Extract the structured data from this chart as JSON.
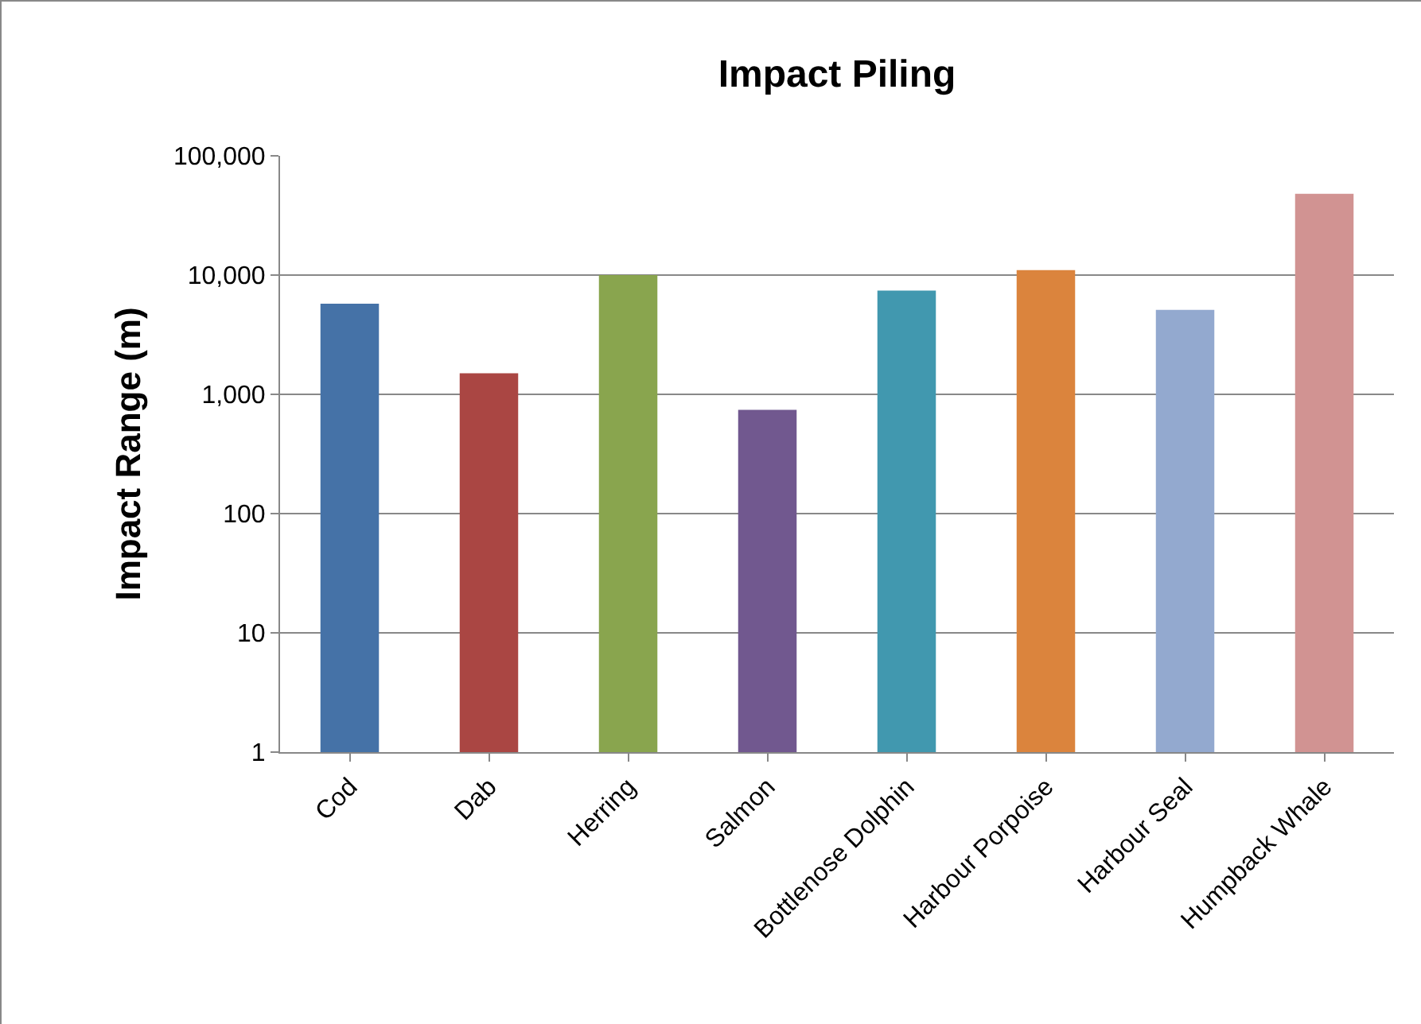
{
  "chart_data": {
    "type": "bar",
    "title": "Impact Piling",
    "ylabel": "Impact Range (m)",
    "categories": [
      "Cod",
      "Dab",
      "Herring",
      "Salmon",
      "Bottlenose Dolphin",
      "Harbour Porpoise",
      "Harbour Seal",
      "Humpback Whale"
    ],
    "values": [
      5750,
      1500,
      10000,
      740,
      7400,
      11000,
      5100,
      48000
    ],
    "colors": [
      "#4572a7",
      "#aa4643",
      "#89a54e",
      "#71588f",
      "#4198af",
      "#db843d",
      "#93a9cf",
      "#d19392"
    ],
    "log": true,
    "ylim": [
      1,
      100000
    ],
    "yticks": [
      1,
      10,
      100,
      {
        "value": 1000,
        "label": "1,000"
      },
      {
        "value": 10000,
        "label": "10,000"
      },
      {
        "value": 100000,
        "label": "100,000"
      }
    ],
    "grid": "y"
  }
}
